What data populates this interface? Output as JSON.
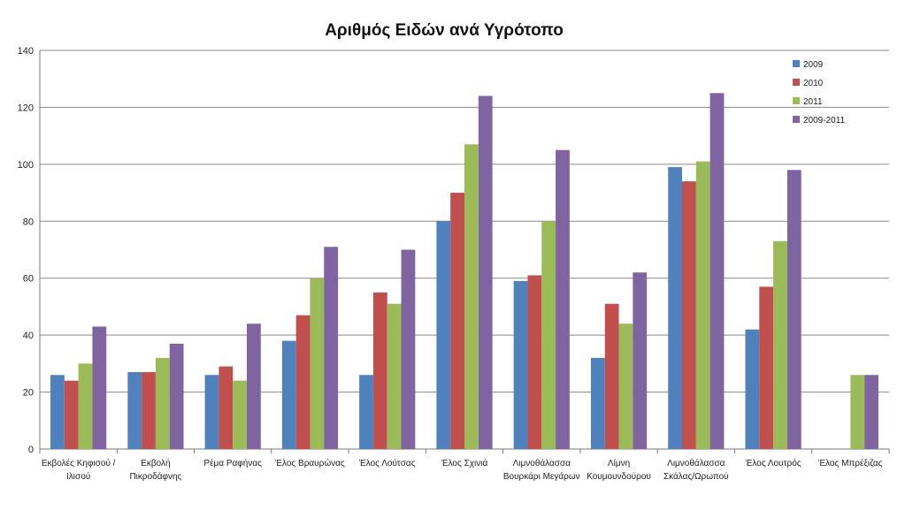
{
  "chart_data": {
    "type": "bar",
    "title": "Αριθμός Ειδών ανά Υγρότοπο",
    "xlabel": "",
    "ylabel": "",
    "ylim": [
      0,
      140
    ],
    "yticks": [
      0,
      20,
      40,
      60,
      80,
      100,
      120,
      140
    ],
    "grid": true,
    "legend_position": "top-right",
    "categories": [
      [
        "Εκβολές Κηφισού /",
        "Ιλισού"
      ],
      [
        "Εκβολή",
        "Πικροδάφνης"
      ],
      [
        "Ρέμα Ραφήνας"
      ],
      [
        "Έλος Βραυρώνας"
      ],
      [
        "Έλος Λούτσας"
      ],
      [
        "Έλος Σχινιά"
      ],
      [
        "Λιμνοθάλασσα",
        "Βουρκάρι Μεγάρων"
      ],
      [
        "Λίμνη",
        "Κουμουνδούρου"
      ],
      [
        "Λιμνοθάλασσα",
        "Σκάλας/Ωρωπού"
      ],
      [
        "Έλος Λουτρός"
      ],
      [
        "Έλος Μπρέξιζας"
      ]
    ],
    "series": [
      {
        "name": "2009",
        "color": "#4f81bd",
        "values": [
          26,
          27,
          26,
          38,
          26,
          80,
          59,
          32,
          99,
          42,
          null
        ]
      },
      {
        "name": "2010",
        "color": "#c0504d",
        "values": [
          24,
          27,
          29,
          47,
          55,
          90,
          61,
          51,
          94,
          57,
          null
        ]
      },
      {
        "name": "2011",
        "color": "#9bbb59",
        "values": [
          30,
          32,
          24,
          60,
          51,
          107,
          80,
          44,
          101,
          73,
          26
        ]
      },
      {
        "name": "2009-2011",
        "color": "#8064a2",
        "values": [
          43,
          37,
          44,
          71,
          70,
          124,
          105,
          62,
          125,
          98,
          26
        ]
      }
    ]
  }
}
